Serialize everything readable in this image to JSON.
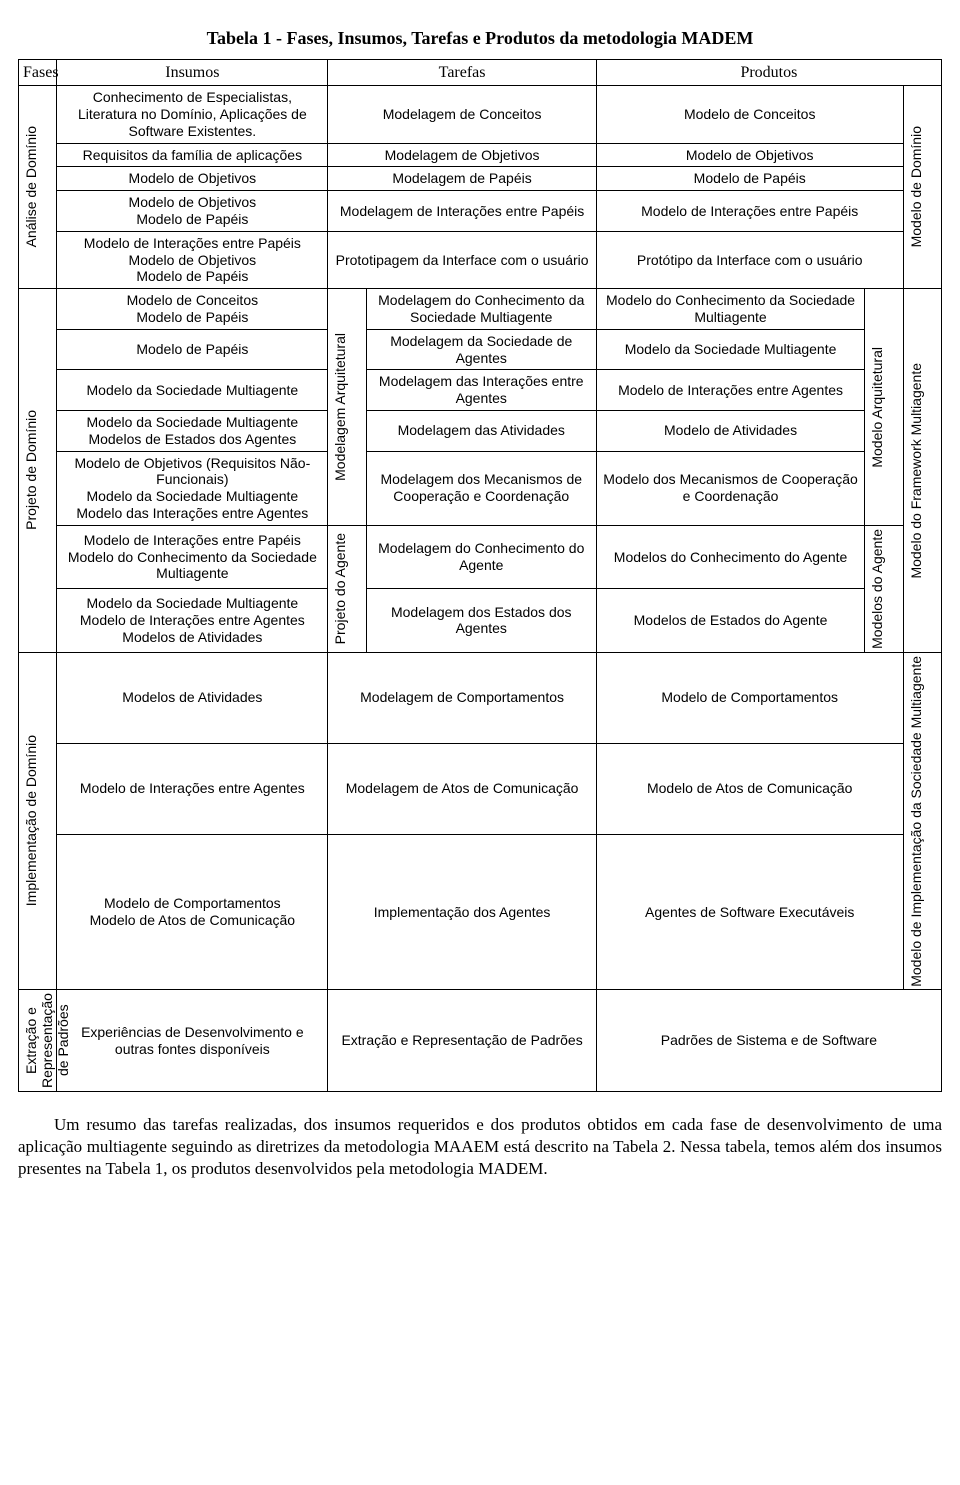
{
  "title": "Tabela 1 - Fases, Insumos, Tarefas e Produtos da metodologia MADEM",
  "headers": {
    "fases": "Fases",
    "insumos": "Insumos",
    "tarefas": "Tarefas",
    "produtos": "Produtos"
  },
  "phase1": {
    "name": "Análise de Domínio",
    "out": "Modelo de Domínio",
    "rows": [
      {
        "ins": "Conhecimento de Especialistas, Literatura no Domínio, Aplicações de Software Existentes.",
        "tar": "Modelagem de Conceitos",
        "prod": "Modelo de Conceitos"
      },
      {
        "ins": "Requisitos da família de aplicações",
        "tar": "Modelagem de Objetivos",
        "prod": "Modelo de Objetivos"
      },
      {
        "ins": "Modelo de Objetivos",
        "tar": "Modelagem de Papéis",
        "prod": "Modelo de Papéis"
      },
      {
        "ins": "Modelo de Objetivos\nModelo de Papéis",
        "tar": "Modelagem de Interações entre Papéis",
        "prod": "Modelo de Interações entre Papéis"
      },
      {
        "ins": "Modelo de Interações entre Papéis\nModelo de Objetivos\nModelo de Papéis",
        "tar": "Prototipagem da Interface com o usuário",
        "prod": "Protótipo da Interface com o usuário"
      }
    ]
  },
  "phase2": {
    "name": "Projeto de Domínio",
    "out": "Modelo do Framework Multiagente",
    "group1": {
      "name": "Modelagem Arquitetural",
      "out": "Modelo Arquitetural",
      "rows": [
        {
          "ins": "Modelo de Conceitos\nModelo de Papéis",
          "tar": "Modelagem do Conhecimento da Sociedade Multiagente",
          "prod": "Modelo do Conhecimento da Sociedade Multiagente"
        },
        {
          "ins": "Modelo de Papéis",
          "tar": "Modelagem da Sociedade de Agentes",
          "prod": "Modelo da Sociedade Multiagente"
        },
        {
          "ins": "Modelo da Sociedade Multiagente",
          "tar": "Modelagem das Interações entre Agentes",
          "prod": "Modelo de Interações entre Agentes"
        },
        {
          "ins": "Modelo da Sociedade Multiagente\nModelos de Estados dos Agentes",
          "tar": "Modelagem das Atividades",
          "prod": "Modelo de Atividades"
        },
        {
          "ins": "Modelo de Objetivos (Requisitos Não-Funcionais)\nModelo da Sociedade Multiagente\nModelo das Interações entre Agentes",
          "tar": "Modelagem dos Mecanismos de Cooperação e Coordenação",
          "prod": "Modelo dos Mecanismos de Cooperação e Coordenação"
        }
      ]
    },
    "group2": {
      "name": "Projeto do Agente",
      "out": "Modelos do Agente",
      "rows": [
        {
          "ins": "Modelo de Interações entre Papéis\nModelo do Conhecimento da Sociedade Multiagente",
          "tar": "Modelagem do Conhecimento do Agente",
          "prod": "Modelos do Conhecimento do Agente"
        },
        {
          "ins": "Modelo da Sociedade Multiagente\nModelo de Interações entre Agentes\nModelos de Atividades",
          "tar": "Modelagem dos Estados dos Agentes",
          "prod": "Modelos de Estados do Agente"
        }
      ]
    }
  },
  "phase3": {
    "name": "Implementação de Domínio",
    "out": "Modelo de Implementação da Sociedade Multiagente",
    "rows": [
      {
        "ins": "Modelos de Atividades",
        "tar": "Modelagem de Comportamentos",
        "prod": "Modelo de Comportamentos"
      },
      {
        "ins": "Modelo de Interações entre Agentes",
        "tar": "Modelagem de Atos de Comunicação",
        "prod": "Modelo de Atos de Comunicação"
      },
      {
        "ins": "Modelo de Comportamentos\nModelo de Atos de Comunicação",
        "tar": "Implementação dos Agentes",
        "prod": "Agentes de Software Executáveis"
      }
    ]
  },
  "phase4": {
    "name": "Extração e Representação de Padrões",
    "ins": "Experiências de Desenvolvimento e outras fontes disponíveis",
    "tar": "Extração e Representação de Padrões",
    "prod": "Padrões de Sistema e de Software"
  },
  "paragraph": "Um resumo das tarefas realizadas, dos insumos requeridos e dos produtos obtidos em cada fase de desenvolvimento de uma aplicação multiagente seguindo as diretrizes da metodologia MAAEM está descrito na Tabela 2. Nessa tabela, temos além dos insumos presentes na Tabela 1, os produtos desenvolvidos pela metodologia MADEM."
}
